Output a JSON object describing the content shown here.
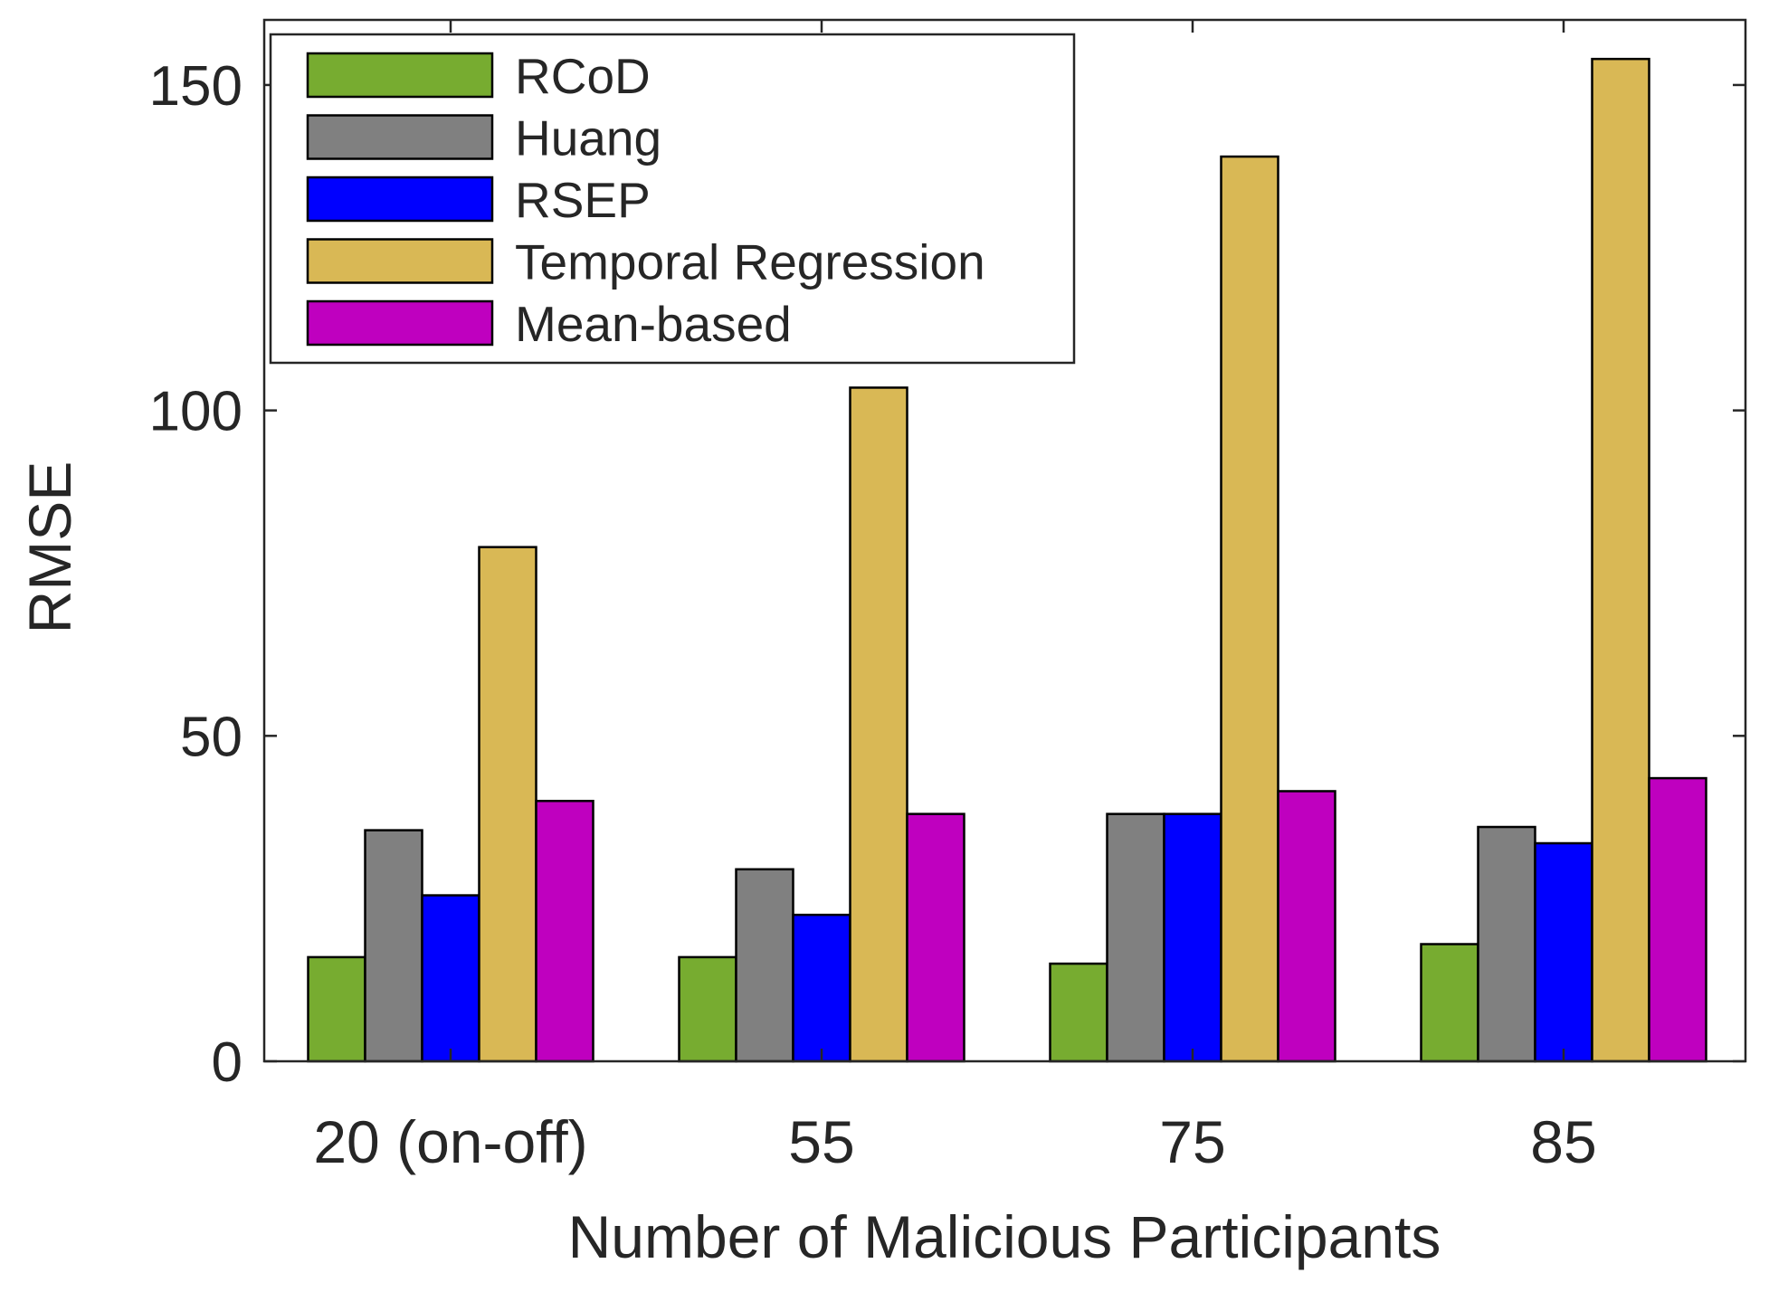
{
  "chart_data": {
    "type": "bar",
    "title": "",
    "xlabel": "Number of Malicious Participants",
    "ylabel": "RMSE",
    "ylim": [
      0,
      160
    ],
    "yticks": [
      0,
      50,
      100,
      150
    ],
    "ytick_labels": [
      "0",
      "50",
      "100",
      "150"
    ],
    "categories": [
      "20 (on-off)",
      "55",
      "75",
      "85"
    ],
    "legend_position": "top-left",
    "grid": false,
    "series": [
      {
        "name": "RCoD",
        "color": "#77ac30",
        "values": [
          16,
          16,
          15,
          18
        ]
      },
      {
        "name": "Huang",
        "color": "#808080",
        "values": [
          35.5,
          29.5,
          38,
          36
        ]
      },
      {
        "name": "RSEP",
        "color": "#0000ff",
        "values": [
          25.5,
          22.5,
          38,
          33.5
        ]
      },
      {
        "name": "Temporal Regression",
        "color": "#d9b855",
        "values": [
          79,
          103.5,
          139,
          154
        ]
      },
      {
        "name": "Mean-based",
        "color": "#bf00bf",
        "values": [
          40,
          38,
          41.5,
          43.5
        ]
      }
    ]
  }
}
